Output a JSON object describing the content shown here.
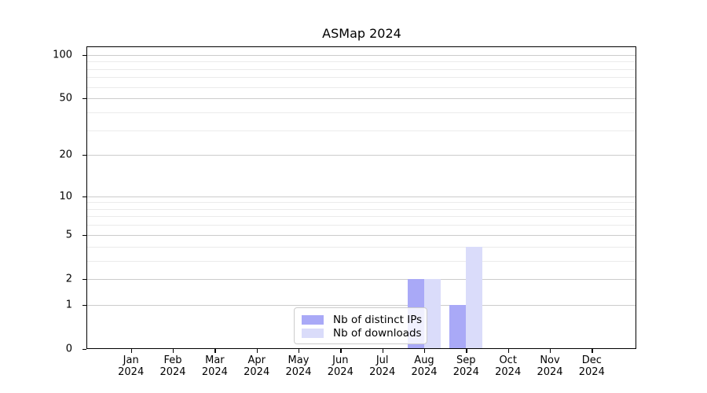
{
  "figure": {
    "background_color": "#ffffff"
  },
  "chart_data": {
    "type": "bar",
    "title": "ASMap 2024",
    "categories": [
      "Jan",
      "Feb",
      "Mar",
      "Apr",
      "May",
      "Jun",
      "Jul",
      "Aug",
      "Sep",
      "Oct",
      "Nov",
      "Dec"
    ],
    "category_year_line": "2024",
    "series": [
      {
        "name": "Nb of distinct IPs",
        "color": "#a9a9f7",
        "values": [
          0,
          0,
          0,
          0,
          0,
          0,
          0,
          2,
          1,
          0,
          0,
          0
        ]
      },
      {
        "name": "Nb of downloads",
        "color": "#dadcfa",
        "values": [
          0,
          0,
          0,
          0,
          0,
          0,
          0,
          2,
          4,
          0,
          0,
          0
        ]
      }
    ],
    "xlabel": "",
    "ylabel": "",
    "yscale": "symlog",
    "ylim": [
      0,
      113
    ],
    "yticks": [
      0,
      1,
      2,
      5,
      10,
      20,
      50,
      100
    ],
    "major_gridlines": [
      1,
      2,
      5,
      10,
      20,
      50,
      100
    ],
    "minor_gridlines": [
      3,
      4,
      6,
      7,
      8,
      9,
      30,
      40,
      60,
      70,
      80,
      90
    ],
    "grid": {
      "on": true,
      "major_color": "#cccccc",
      "minor_color": "#ebebeb"
    },
    "legend": {
      "position": "lower center",
      "items": [
        {
          "label": "Nb of distinct IPs",
          "color": "#a9a9f7"
        },
        {
          "label": "Nb of downloads",
          "color": "#dadcfa"
        }
      ]
    }
  }
}
